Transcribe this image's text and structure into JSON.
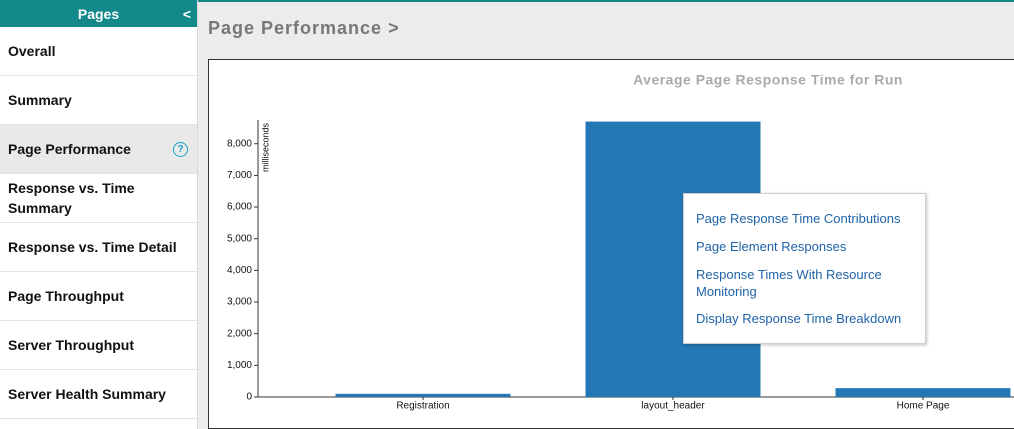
{
  "sidebar": {
    "title": "Pages",
    "collapse_icon": "<",
    "help_icon": "?",
    "items": [
      "Overall",
      "Summary",
      "Page Performance",
      "Response vs. Time Summary",
      "Response vs. Time Detail",
      "Page Throughput",
      "Server Throughput",
      "Server Health Summary"
    ]
  },
  "header": {
    "title": "Page Performance >"
  },
  "context_menu": {
    "items": [
      "Page Response Time Contributions",
      "Page Element Responses",
      "Response Times With Resource Monitoring",
      "Display Response Time Breakdown"
    ]
  },
  "chart_data": {
    "type": "bar",
    "title": "Average Page Response Time for Run",
    "y_label": "milliseconds",
    "categories": [
      "Registration",
      "layout_header",
      "Home Page"
    ],
    "values": [
      100,
      8700,
      280
    ],
    "color": "#2378b5",
    "ylim": [
      0,
      8750
    ],
    "yticks": [
      0,
      {
        "value": 1000,
        "label": "1,000"
      },
      {
        "value": 2000,
        "label": "2,000"
      },
      {
        "value": 3000,
        "label": "3,000"
      },
      {
        "value": 4000,
        "label": "4,000"
      },
      {
        "value": 5000,
        "label": "5,000"
      },
      {
        "value": 6000,
        "label": "6,000"
      },
      {
        "value": 7000,
        "label": "7,000"
      },
      {
        "value": 8000,
        "label": "8,000"
      }
    ]
  }
}
